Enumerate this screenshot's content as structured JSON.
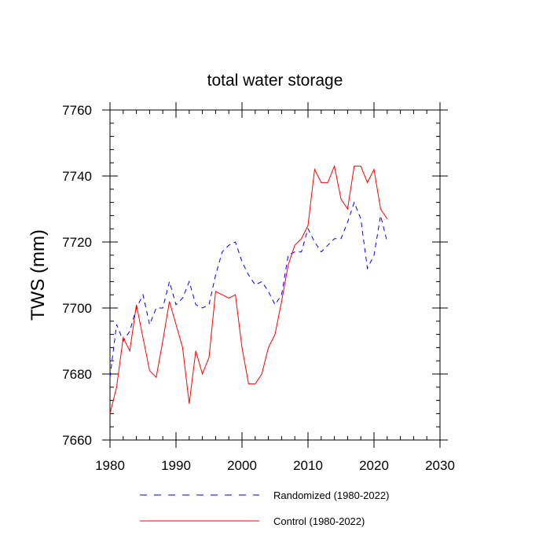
{
  "chart_data": {
    "type": "line",
    "title": "total water storage",
    "xlabel": "",
    "ylabel": "TWS  (mm)",
    "xlim": [
      1980,
      2030
    ],
    "ylim": [
      7660,
      7760
    ],
    "xticks": [
      "1980",
      "1990",
      "2000",
      "2010",
      "2020",
      "2030"
    ],
    "yticks": [
      "7660",
      "7680",
      "7700",
      "7720",
      "7740",
      "7760"
    ],
    "x": [
      1980,
      1981,
      1982,
      1983,
      1984,
      1985,
      1986,
      1987,
      1988,
      1989,
      1990,
      1991,
      1992,
      1993,
      1994,
      1995,
      1996,
      1997,
      1998,
      1999,
      2000,
      2001,
      2002,
      2003,
      2004,
      2005,
      2006,
      2007,
      2008,
      2009,
      2010,
      2011,
      2012,
      2013,
      2014,
      2015,
      2016,
      2017,
      2018,
      2019,
      2020,
      2021,
      2022
    ],
    "series": [
      {
        "name": "Randomized (1980-2022)",
        "color": "#0000ff",
        "dash": "dashed",
        "values": [
          7679,
          7695,
          7690,
          7693,
          7700,
          7704,
          7695,
          7700,
          7700,
          7708,
          7701,
          7703,
          7708,
          7701,
          7700,
          7701,
          7710,
          7717,
          7719,
          7720,
          7714,
          7710,
          7707,
          7708,
          7705,
          7701,
          7704,
          7716,
          7717,
          7717,
          7724,
          7720,
          7717,
          7719,
          7721,
          7721,
          7726,
          7732,
          7727,
          7712,
          7716,
          7728,
          7720
        ]
      },
      {
        "name": "Control (1980-2022)",
        "color": "#ff0000",
        "dash": "solid",
        "values": [
          7668,
          7676,
          7691,
          7687,
          7701,
          7691,
          7681,
          7679,
          7690,
          7702,
          7695,
          7688,
          7671,
          7687,
          7680,
          7685,
          7705,
          7704,
          7703,
          7704,
          7688,
          7677,
          7677,
          7680,
          7688,
          7692,
          7702,
          7713,
          7719,
          7721,
          7725,
          7742,
          7738,
          7738,
          7743,
          7733,
          7730,
          7743,
          7743,
          7738,
          7742,
          7730,
          7727
        ]
      }
    ],
    "legend": {
      "position": "bottom",
      "entries": [
        "Randomized (1980-2022)",
        "Control (1980-2022)"
      ]
    }
  }
}
